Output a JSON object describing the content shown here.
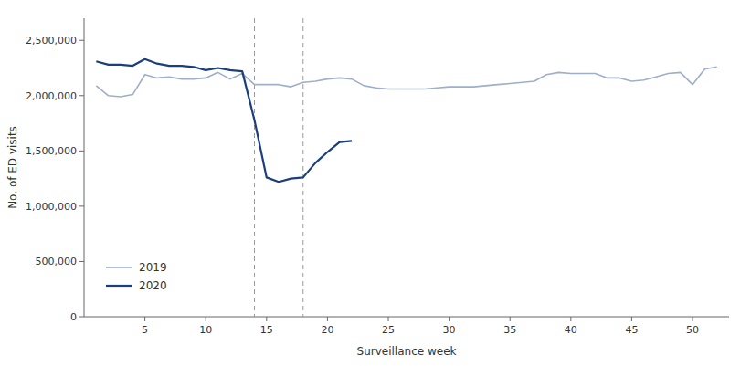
{
  "chart_data": {
    "type": "line",
    "xlabel": "Surveillance week",
    "ylabel": "No. of ED visits",
    "xlim": [
      0,
      53
    ],
    "ylim": [
      0,
      2700000
    ],
    "xticks": [
      5,
      10,
      15,
      20,
      25,
      30,
      35,
      40,
      45,
      50
    ],
    "yticks": [
      0,
      {
        "value": 500000,
        "label": "500,000"
      },
      {
        "value": 1000000,
        "label": "1,000,000"
      },
      {
        "value": 1500000,
        "label": "1,500,000"
      },
      {
        "value": 2000000,
        "label": "2,000,000"
      },
      {
        "value": 2500000,
        "label": "2,500,000"
      }
    ],
    "vlines": [
      14,
      18
    ],
    "grid": false,
    "legend": "lower left",
    "series": [
      {
        "name": "2019",
        "color": "#9faecb",
        "x": [
          1,
          2,
          3,
          4,
          5,
          6,
          7,
          8,
          9,
          10,
          11,
          12,
          13,
          14,
          15,
          16,
          17,
          18,
          19,
          20,
          21,
          22,
          23,
          24,
          25,
          26,
          27,
          28,
          29,
          30,
          31,
          32,
          33,
          34,
          35,
          36,
          37,
          38,
          39,
          40,
          41,
          42,
          43,
          44,
          45,
          46,
          47,
          48,
          49,
          50,
          51,
          52
        ],
        "values": [
          2090000,
          2000000,
          1990000,
          2010000,
          2190000,
          2160000,
          2170000,
          2150000,
          2150000,
          2160000,
          2210000,
          2150000,
          2200000,
          2100000,
          2100000,
          2100000,
          2080000,
          2120000,
          2130000,
          2150000,
          2160000,
          2150000,
          2090000,
          2070000,
          2060000,
          2060000,
          2060000,
          2060000,
          2070000,
          2080000,
          2080000,
          2080000,
          2090000,
          2100000,
          2110000,
          2120000,
          2130000,
          2190000,
          2210000,
          2200000,
          2200000,
          2200000,
          2160000,
          2160000,
          2130000,
          2140000,
          2170000,
          2200000,
          2210000,
          2100000,
          2240000,
          2260000
        ]
      },
      {
        "name": "2020",
        "color": "#1b3f7a",
        "x": [
          1,
          2,
          3,
          4,
          5,
          6,
          7,
          8,
          9,
          10,
          11,
          12,
          13,
          14,
          15,
          16,
          17,
          18,
          19,
          20,
          21,
          22
        ],
        "values": [
          2310000,
          2280000,
          2280000,
          2270000,
          2330000,
          2290000,
          2270000,
          2270000,
          2260000,
          2230000,
          2250000,
          2230000,
          2220000,
          1780000,
          1260000,
          1220000,
          1250000,
          1260000,
          1390000,
          1490000,
          1580000,
          1590000
        ]
      }
    ]
  }
}
